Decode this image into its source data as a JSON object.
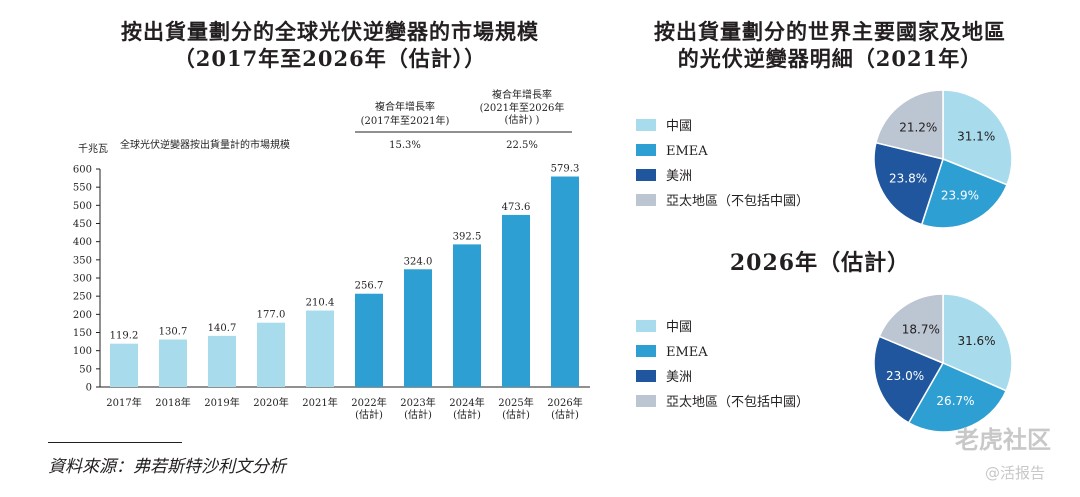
{
  "left_title_line1": "按出貨量劃分的全球光伏逆變器的市場規模",
  "left_title_line2": "（2017年至2026年（估計））",
  "right_title_line1": "按出貨量劃分的世界主要國家及地區",
  "right_title_line2": "的光伏逆變器明細（2021年）",
  "source": "資料來源：弗若斯特沙利文分析",
  "watermark_main": "老虎社区",
  "watermark_sub": "@活报告",
  "colors": {
    "light": "#a8dcec",
    "mid": "#2e9fd3",
    "dark": "#1f569d",
    "grey": "#bcc5d2"
  },
  "chart_data": [
    {
      "type": "bar",
      "title": "按出貨量劃分的全球光伏逆變器的市場規模（2017年至2026年（估計））",
      "ylabel": "千兆瓦",
      "series_label": "全球光伏逆變器按出貨量計的市場規模",
      "ylim": [
        0,
        600
      ],
      "yticks": [
        0,
        50,
        100,
        150,
        200,
        250,
        300,
        350,
        400,
        450,
        500,
        550,
        600
      ],
      "categories": [
        "2017年",
        "2018年",
        "2019年",
        "2020年",
        "2021年",
        "2022年",
        "2023年",
        "2024年",
        "2025年",
        "2026年"
      ],
      "estimate_note": "(估計)",
      "values": [
        119.2,
        130.7,
        140.7,
        177.0,
        210.4,
        256.7,
        324.0,
        392.5,
        473.6,
        579.3
      ],
      "value_labels": [
        "119.2",
        "130.7",
        "140.7",
        "177.0",
        "210.4",
        "256.7",
        "324.0",
        "392.5",
        "473.6",
        "579.3"
      ],
      "estimated": [
        false,
        false,
        false,
        false,
        false,
        true,
        true,
        true,
        true,
        true
      ],
      "cagr": [
        {
          "label1": "複合年增長率",
          "label2": "(2017年至2021年)",
          "label3": "",
          "value": "15.3%"
        },
        {
          "label1": "複合年增長率",
          "label2": "(2021年至2026年",
          "label3": "(估計)  )",
          "value": "22.5%"
        }
      ]
    },
    {
      "type": "pie",
      "title": "2021年",
      "legend": [
        "中國",
        "EMEA",
        "美洲",
        "亞太地區（不包括中國）"
      ],
      "values": [
        31.1,
        23.9,
        23.8,
        21.2
      ],
      "value_labels": [
        "31.1%",
        "23.9%",
        "23.8%",
        "21.2%"
      ]
    },
    {
      "type": "pie",
      "title": "2026年（估計）",
      "legend": [
        "中國",
        "EMEA",
        "美洲",
        "亞太地區（不包括中國）"
      ],
      "values": [
        31.6,
        26.7,
        23.0,
        18.7
      ],
      "value_labels": [
        "31.6%",
        "26.7%",
        "23.0%",
        "18.7%"
      ]
    }
  ]
}
